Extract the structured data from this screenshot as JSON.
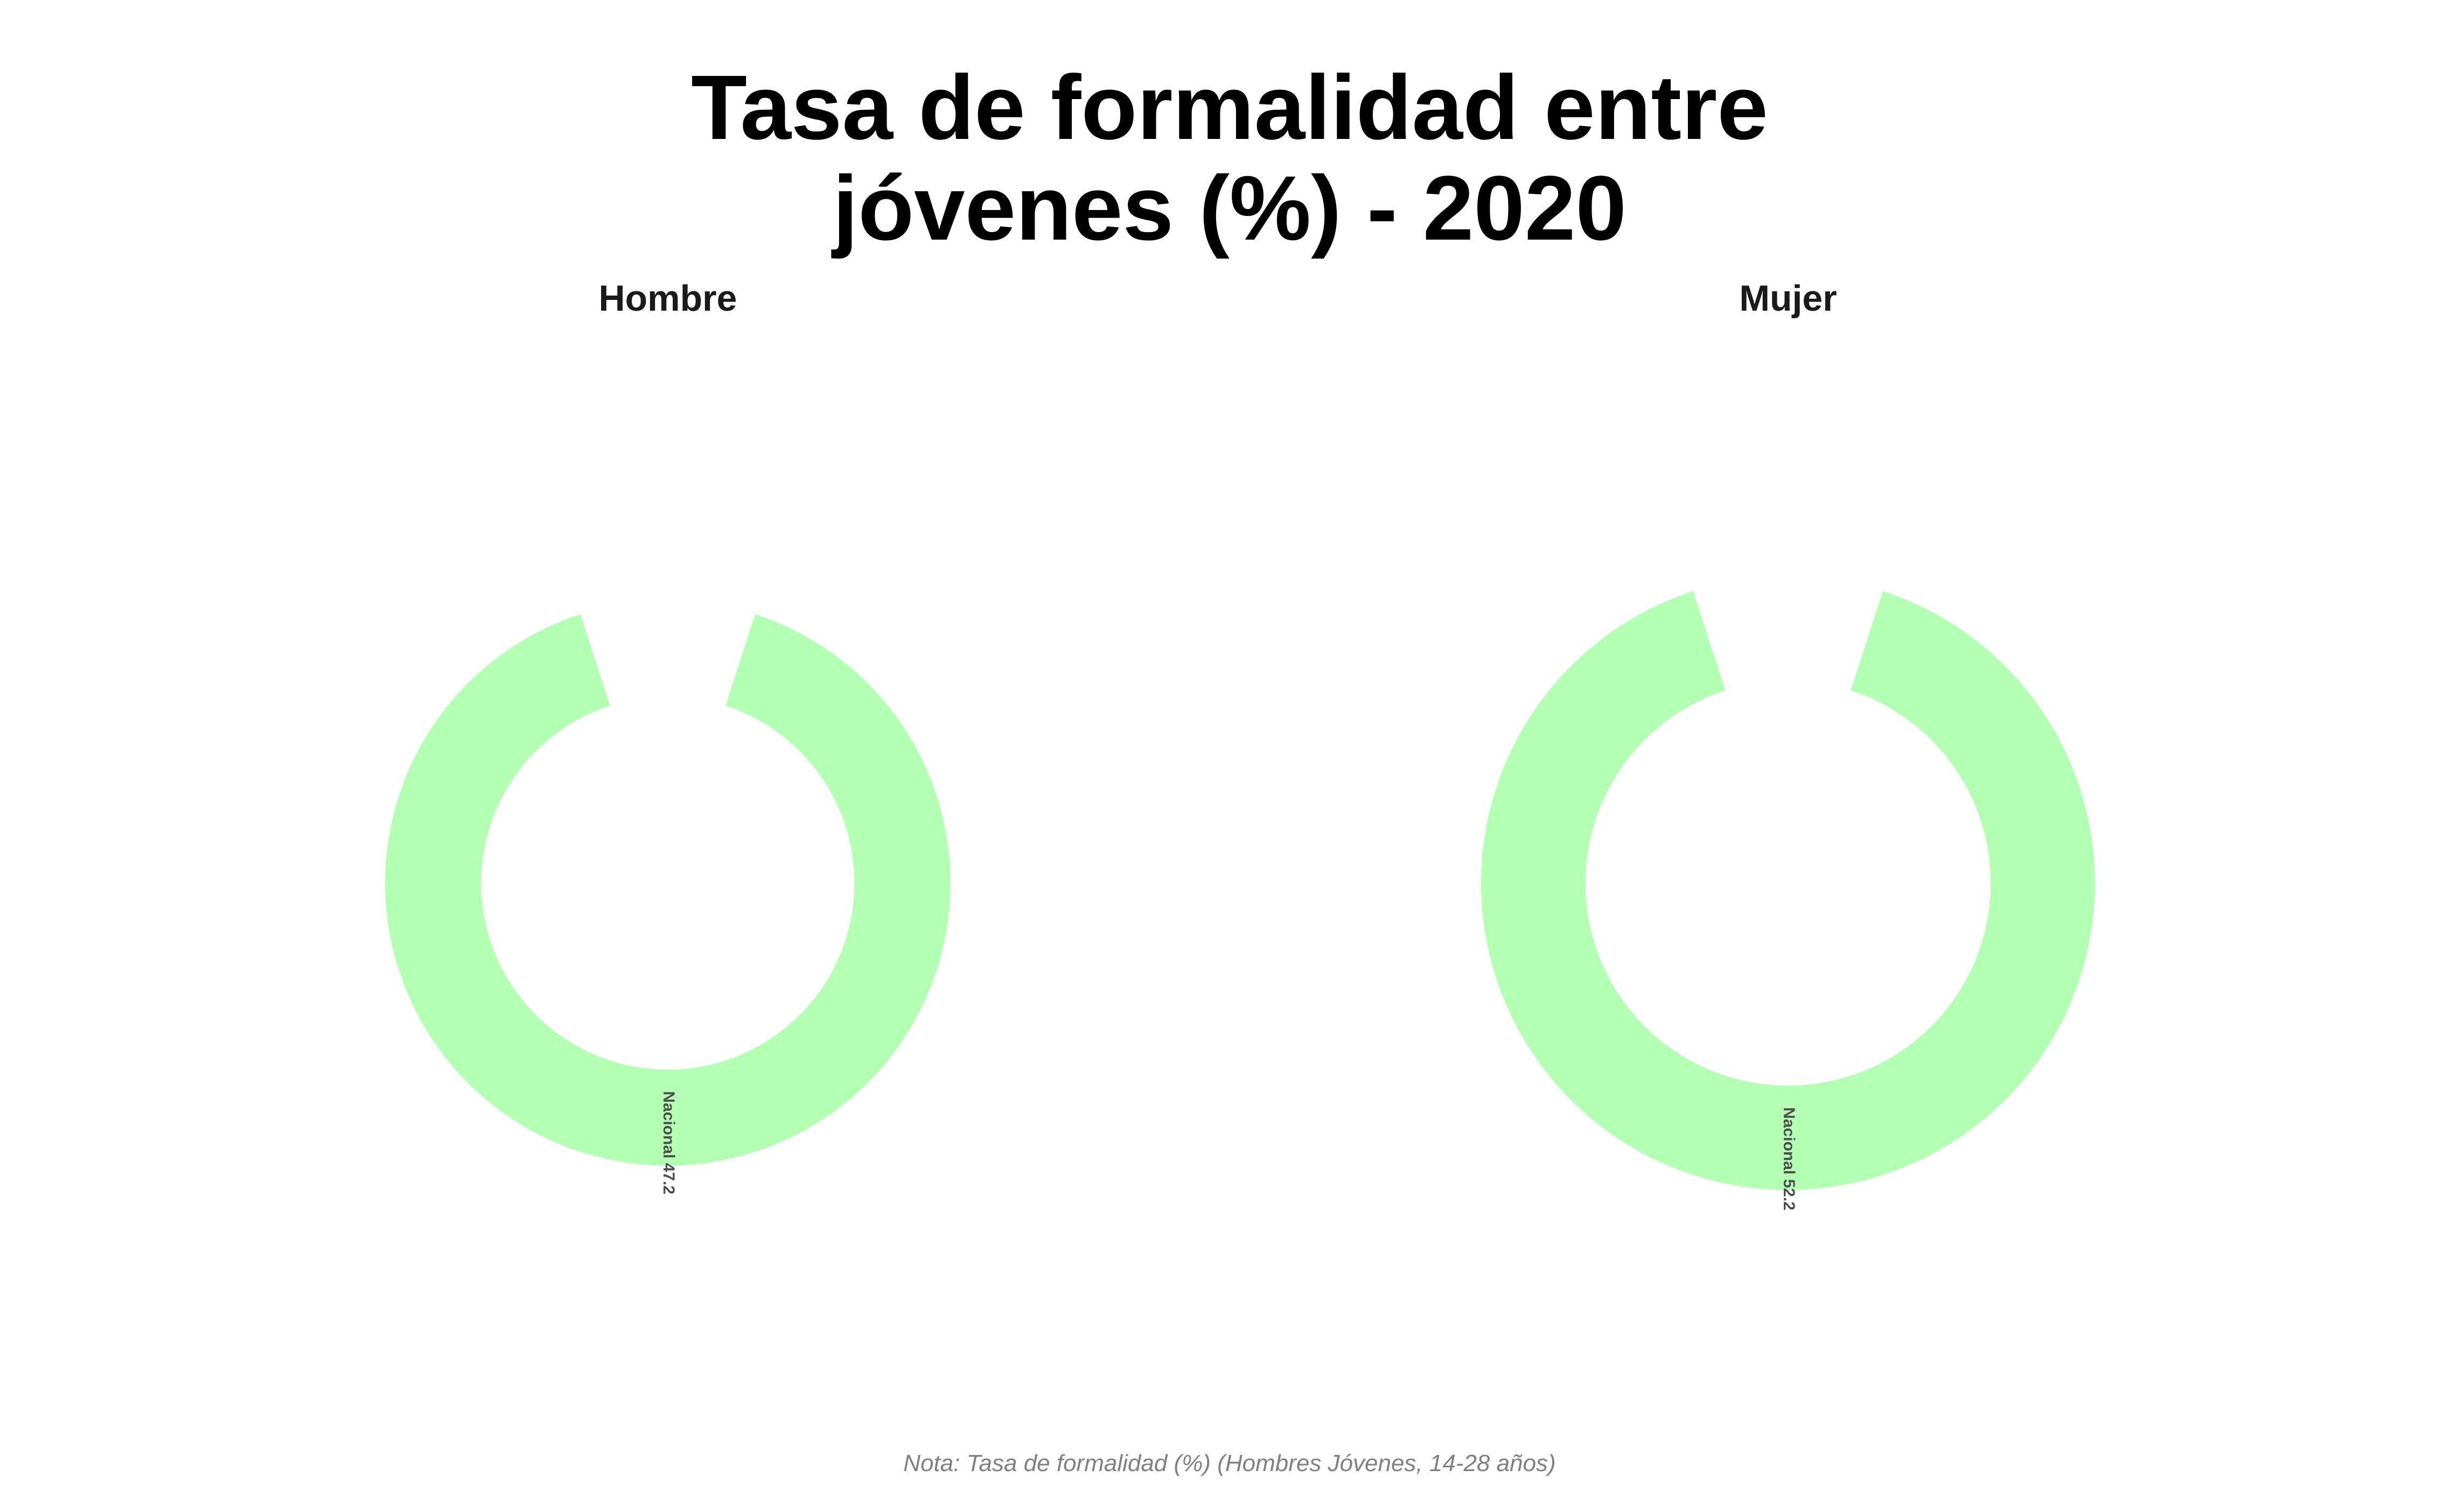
{
  "chart_data": {
    "type": "pie",
    "subtype": "donut",
    "title_line1": "Tasa de formalidad entre",
    "title_line2": "jóvenes (%) - 2020",
    "facets": [
      {
        "name": "Hombre",
        "label": "Nacional 47.2",
        "category": "Nacional",
        "value": 47.2
      },
      {
        "name": "Mujer",
        "label": "Nacional 52.2",
        "category": "Nacional",
        "value": 52.2
      }
    ],
    "caption": "Nota: Tasa de formalidad (%) (Hombres Jóvenes, 14-28 años)",
    "colors": {
      "ring": "#b3ffb3",
      "title": "#000000",
      "facet_title": "#1a1a1a",
      "label": "#4d4d4d",
      "caption": "#808080"
    }
  }
}
